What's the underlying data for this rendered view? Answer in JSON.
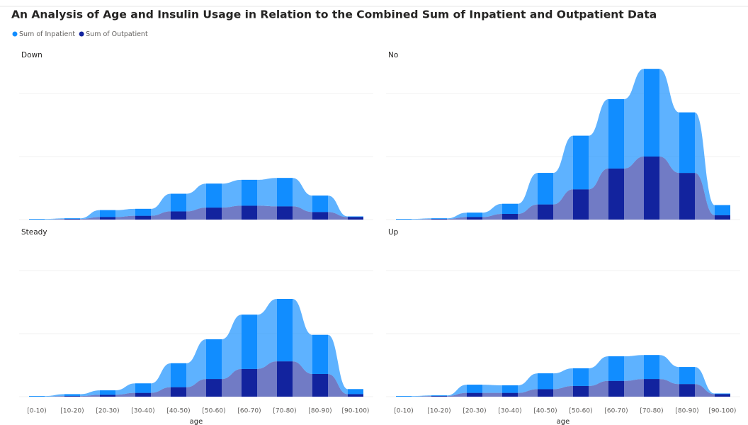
{
  "chart_data": {
    "type": "ribbon",
    "title": "An Analysis of Age and Insulin Usage in Relation to the Combined Sum of Inpatient and Outpatient Data",
    "categories": [
      "[0-10)",
      "[10-20)",
      "[20-30)",
      "[30-40)",
      "[40-50)",
      "[50-60)",
      "[60-70)",
      "[70-80)",
      "[80-90)",
      "[90-100)"
    ],
    "x_label": "age",
    "ylim": [
      0,
      25000
    ],
    "yticks": [
      0,
      10000,
      20000
    ],
    "grid": true,
    "series": [
      {
        "name": "Sum of Inpatient",
        "color": "#118DFF"
      },
      {
        "name": "Sum of Outpatient",
        "color": "#12239E"
      }
    ],
    "panels": [
      {
        "title": "Down",
        "values": [
          [
            100,
            100,
            1100,
            1100,
            2800,
            3800,
            4100,
            4500,
            2600,
            100
          ],
          [
            0,
            100,
            400,
            600,
            1300,
            1900,
            2200,
            2100,
            1200,
            400
          ]
        ]
      },
      {
        "title": "No",
        "values": [
          [
            100,
            100,
            700,
            1600,
            5000,
            8500,
            11000,
            13900,
            9600,
            1600
          ],
          [
            0,
            100,
            400,
            900,
            2400,
            4800,
            8100,
            10000,
            7400,
            700
          ]
        ]
      },
      {
        "title": "Steady",
        "values": [
          [
            100,
            300,
            700,
            1500,
            3800,
            6300,
            8600,
            9900,
            6200,
            800
          ],
          [
            0,
            100,
            300,
            600,
            1500,
            2800,
            4400,
            5600,
            3600,
            400
          ]
        ]
      },
      {
        "title": "Up",
        "values": [
          [
            100,
            100,
            1300,
            1200,
            2500,
            2800,
            3900,
            3800,
            2700,
            100
          ],
          [
            0,
            100,
            600,
            600,
            1200,
            1700,
            2500,
            2800,
            2000,
            400
          ]
        ]
      }
    ]
  }
}
